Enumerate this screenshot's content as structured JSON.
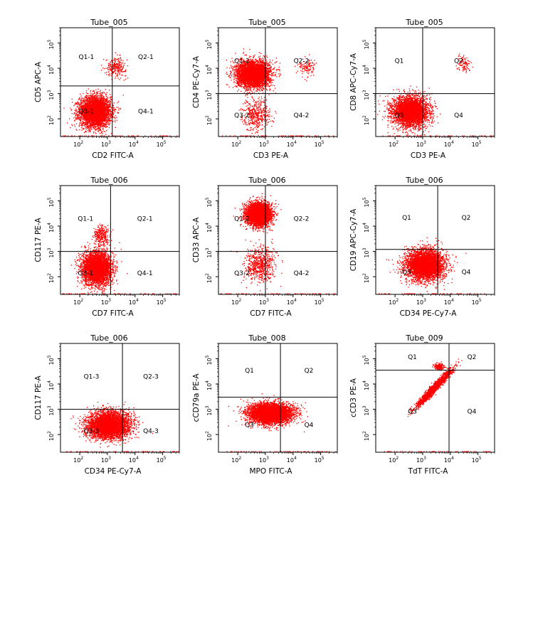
{
  "figure": {
    "layout": "3x3 grid of flow cytometry quadrant dot plots",
    "dot_color": "#ff0000",
    "frame_color": "#000000",
    "background": "#ffffff"
  },
  "chart_data": [
    {
      "type": "scatter",
      "title": "Tube_005",
      "xlabel": "CD2 FITC-A",
      "ylabel": "CD5 APC-A",
      "scale": "log",
      "xlim": [
        20,
        400000
      ],
      "ylim": [
        20,
        400000
      ],
      "xticks": [
        100,
        1000,
        10000,
        100000
      ],
      "yticks": [
        100,
        1000,
        10000,
        100000
      ],
      "gate": {
        "x": 1500,
        "y": 2000
      },
      "quadrants": [
        "Q1-1",
        "Q2-1",
        "Q3-1",
        "Q4-1"
      ],
      "populations": [
        {
          "center": [
            350,
            200
          ],
          "spread": [
            0.28,
            0.3
          ],
          "count": 4200
        },
        {
          "center": [
            2000,
            12000
          ],
          "spread": [
            0.18,
            0.18
          ],
          "count": 260
        }
      ]
    },
    {
      "type": "scatter",
      "title": "Tube_005",
      "xlabel": "CD3 PE-A",
      "ylabel": "CD4 PE-Cy7-A",
      "scale": "log",
      "xlim": [
        20,
        400000
      ],
      "ylim": [
        20,
        400000
      ],
      "xticks": [
        100,
        1000,
        10000,
        100000
      ],
      "yticks": [
        100,
        1000,
        10000,
        100000
      ],
      "gate": {
        "x": 1000,
        "y": 1000
      },
      "quadrants": [
        "Q1-2",
        "Q2-2",
        "Q3-2",
        "Q4-2"
      ],
      "populations": [
        {
          "center": [
            350,
            6000
          ],
          "spread": [
            0.3,
            0.26
          ],
          "count": 4200
        },
        {
          "center": [
            450,
            150
          ],
          "spread": [
            0.25,
            0.3
          ],
          "count": 450
        },
        {
          "center": [
            30000,
            12000
          ],
          "spread": [
            0.15,
            0.18
          ],
          "count": 120
        }
      ]
    },
    {
      "type": "scatter",
      "title": "Tube_005",
      "xlabel": "CD3 PE-A",
      "ylabel": "CD8 APC-Cy7-A",
      "scale": "log",
      "xlim": [
        20,
        400000
      ],
      "ylim": [
        20,
        400000
      ],
      "xticks": [
        100,
        1000,
        10000,
        100000
      ],
      "yticks": [
        100,
        1000,
        10000,
        100000
      ],
      "gate": {
        "x": 1000,
        "y": 1000
      },
      "quadrants": [
        "Q1",
        "Q2",
        "Q3",
        "Q4"
      ],
      "populations": [
        {
          "center": [
            350,
            200
          ],
          "spread": [
            0.32,
            0.3
          ],
          "count": 4000
        },
        {
          "center": [
            30000,
            15000
          ],
          "spread": [
            0.12,
            0.16
          ],
          "count": 100
        }
      ]
    },
    {
      "type": "scatter",
      "title": "Tube_006",
      "xlabel": "CD7 FITC-A",
      "ylabel": "CD117 PE-A",
      "scale": "log",
      "xlim": [
        20,
        400000
      ],
      "ylim": [
        20,
        400000
      ],
      "xticks": [
        100,
        1000,
        10000,
        100000
      ],
      "yticks": [
        100,
        1000,
        10000,
        100000
      ],
      "gate": {
        "x": 1300,
        "y": 1000
      },
      "quadrants": [
        "Q1-1",
        "Q2-1",
        "Q3-1",
        "Q4-1"
      ],
      "populations": [
        {
          "center": [
            400,
            220
          ],
          "spread": [
            0.26,
            0.32
          ],
          "count": 4200
        },
        {
          "center": [
            600,
            4000
          ],
          "spread": [
            0.15,
            0.22
          ],
          "count": 300
        }
      ]
    },
    {
      "type": "scatter",
      "title": "Tube_006",
      "xlabel": "CD7 FITC-A",
      "ylabel": "CD33 APC-A",
      "scale": "log",
      "xlim": [
        20,
        400000
      ],
      "ylim": [
        20,
        400000
      ],
      "xticks": [
        100,
        1000,
        10000,
        100000
      ],
      "yticks": [
        100,
        1000,
        10000,
        100000
      ],
      "gate": {
        "x": 1000,
        "y": 1000
      },
      "quadrants": [
        "Q1-2",
        "Q2-2",
        "Q3-2",
        "Q4-2"
      ],
      "populations": [
        {
          "center": [
            550,
            30000
          ],
          "spread": [
            0.22,
            0.22
          ],
          "count": 4200
        },
        {
          "center": [
            600,
            300
          ],
          "spread": [
            0.28,
            0.34
          ],
          "count": 700
        }
      ]
    },
    {
      "type": "scatter",
      "title": "Tube_006",
      "xlabel": "CD34 PE-Cy7-A",
      "ylabel": "CD19 APC-Cy7-A",
      "scale": "log",
      "xlim": [
        20,
        400000
      ],
      "ylim": [
        20,
        400000
      ],
      "xticks": [
        100,
        1000,
        10000,
        100000
      ],
      "yticks": [
        100,
        1000,
        10000,
        100000
      ],
      "gate": {
        "x": 3500,
        "y": 1200
      },
      "quadrants": [
        "Q1",
        "Q2",
        "Q3",
        "Q4"
      ],
      "populations": [
        {
          "center": [
            1200,
            300
          ],
          "spread": [
            0.34,
            0.3
          ],
          "count": 4500
        }
      ]
    },
    {
      "type": "scatter",
      "title": "Tube_006",
      "xlabel": "CD34 PE-Cy7-A",
      "ylabel": "CD117 PE-A",
      "scale": "log",
      "xlim": [
        20,
        400000
      ],
      "ylim": [
        20,
        400000
      ],
      "xticks": [
        100,
        1000,
        10000,
        100000
      ],
      "yticks": [
        100,
        1000,
        10000,
        100000
      ],
      "gate": {
        "x": 3500,
        "y": 1000
      },
      "quadrants": [
        "Q1-3",
        "Q2-3",
        "Q3-3",
        "Q4-3"
      ],
      "populations": [
        {
          "center": [
            1100,
            250
          ],
          "spread": [
            0.38,
            0.26
          ],
          "count": 4800
        }
      ]
    },
    {
      "type": "scatter",
      "title": "Tube_008",
      "xlabel": "MPO FITC-A",
      "ylabel": "cCD79a PE-A",
      "scale": "log",
      "xlim": [
        20,
        400000
      ],
      "ylim": [
        20,
        400000
      ],
      "xticks": [
        100,
        1000,
        10000,
        100000
      ],
      "yticks": [
        100,
        1000,
        10000,
        100000
      ],
      "gate": {
        "x": 3500,
        "y": 3000
      },
      "quadrants": [
        "Q1",
        "Q2",
        "Q3",
        "Q4"
      ],
      "populations": [
        {
          "center": [
            1500,
            700
          ],
          "spread": [
            0.4,
            0.2
          ],
          "count": 4800
        }
      ]
    },
    {
      "type": "scatter",
      "title": "Tube_009",
      "xlabel": "TdT FITC-A",
      "ylabel": "cCD3 PE-A",
      "scale": "log",
      "xlim": [
        20,
        400000
      ],
      "ylim": [
        20,
        400000
      ],
      "xticks": [
        100,
        1000,
        10000,
        100000
      ],
      "yticks": [
        100,
        1000,
        10000,
        100000
      ],
      "gate": {
        "x": 9000,
        "y": 35000
      },
      "quadrants": [
        "Q1",
        "Q2",
        "Q3",
        "Q4"
      ],
      "populations": [
        {
          "center": [
            2500,
            7000
          ],
          "spread": [
            0.18,
            0.18
          ],
          "count": 1800,
          "diagonal": true
        },
        {
          "center": [
            4000,
            50000
          ],
          "spread": [
            0.1,
            0.06
          ],
          "count": 180
        }
      ]
    }
  ]
}
